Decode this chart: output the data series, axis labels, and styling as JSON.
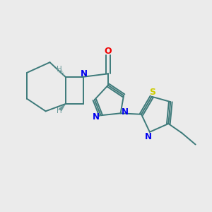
{
  "background_color": "#ebebeb",
  "bond_color": "#3d7a7a",
  "N_color": "#0000ee",
  "O_color": "#ee0000",
  "S_color": "#cccc00",
  "H_color": "#6a9a9a",
  "line_width": 1.4,
  "figsize": [
    3.0,
    3.0
  ],
  "dpi": 100,
  "xlim": [
    0,
    10
  ],
  "ylim": [
    0,
    10
  ]
}
